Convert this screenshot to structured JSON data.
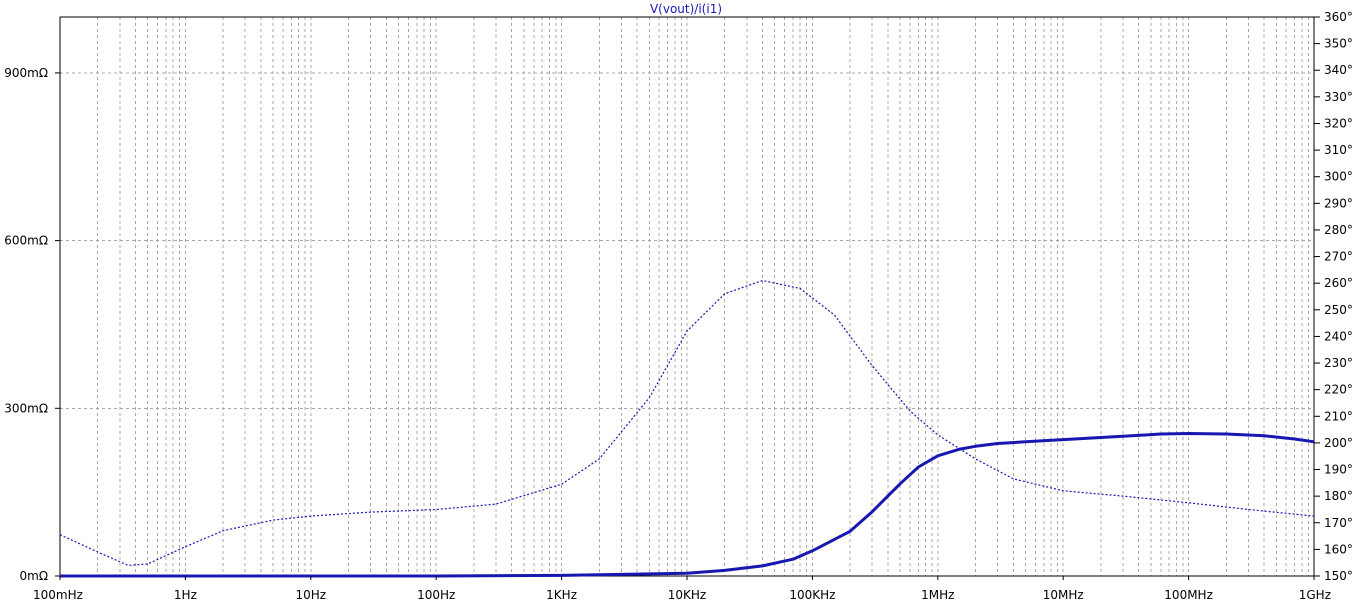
{
  "chart_data": {
    "type": "line",
    "title": "V(vout)/i(i1)",
    "x_scale": "log",
    "xlim_hz": [
      0.1,
      1000000000
    ],
    "x_ticks": [
      {
        "value": 0.1,
        "label": "100mHz"
      },
      {
        "value": 1,
        "label": "1Hz"
      },
      {
        "value": 10,
        "label": "10Hz"
      },
      {
        "value": 100,
        "label": "100Hz"
      },
      {
        "value": 1000,
        "label": "1KHz"
      },
      {
        "value": 10000,
        "label": "10KHz"
      },
      {
        "value": 100000,
        "label": "100KHz"
      },
      {
        "value": 1000000,
        "label": "1MHz"
      },
      {
        "value": 10000000,
        "label": "10MHz"
      },
      {
        "value": 100000000,
        "label": "100MHz"
      },
      {
        "value": 1000000000,
        "label": "1GHz"
      }
    ],
    "y_left": {
      "unit": "mΩ",
      "lim": [
        0,
        1000
      ],
      "ticks": [
        {
          "value": 0,
          "label": "0mΩ"
        },
        {
          "value": 300,
          "label": "300mΩ"
        },
        {
          "value": 600,
          "label": "600mΩ"
        },
        {
          "value": 900,
          "label": "900mΩ"
        }
      ]
    },
    "y_right": {
      "unit": "°",
      "lim": [
        150,
        360
      ],
      "ticks": [
        {
          "value": 150,
          "label": "150°"
        },
        {
          "value": 160,
          "label": "160°"
        },
        {
          "value": 170,
          "label": "170°"
        },
        {
          "value": 180,
          "label": "180°"
        },
        {
          "value": 190,
          "label": "190°"
        },
        {
          "value": 200,
          "label": "200°"
        },
        {
          "value": 210,
          "label": "210°"
        },
        {
          "value": 220,
          "label": "220°"
        },
        {
          "value": 230,
          "label": "230°"
        },
        {
          "value": 240,
          "label": "240°"
        },
        {
          "value": 250,
          "label": "250°"
        },
        {
          "value": 260,
          "label": "260°"
        },
        {
          "value": 270,
          "label": "270°"
        },
        {
          "value": 280,
          "label": "280°"
        },
        {
          "value": 290,
          "label": "290°"
        },
        {
          "value": 300,
          "label": "300°"
        },
        {
          "value": 310,
          "label": "310°"
        },
        {
          "value": 320,
          "label": "320°"
        },
        {
          "value": 330,
          "label": "330°"
        },
        {
          "value": 340,
          "label": "340°"
        },
        {
          "value": 350,
          "label": "350°"
        },
        {
          "value": 360,
          "label": "360°"
        }
      ]
    },
    "grid": true,
    "series": [
      {
        "axis": "left",
        "style": "solid",
        "color": "#1818b0",
        "x": [
          0.1,
          1,
          10,
          100,
          1000,
          10000,
          20000,
          40000,
          70000,
          100000,
          200000,
          300000,
          500000,
          700000,
          1000000,
          1500000,
          2000000,
          3000000,
          5000000,
          10000000,
          30000000,
          60000000,
          100000000,
          200000000,
          400000000,
          700000000,
          1000000000
        ],
        "y": [
          0,
          0,
          0,
          0,
          1,
          5,
          10,
          18,
          30,
          45,
          80,
          115,
          165,
          195,
          215,
          227,
          232,
          237,
          240,
          244,
          250,
          254,
          255,
          254,
          251,
          245,
          240
        ]
      },
      {
        "axis": "right",
        "style": "dotted",
        "color": "#1818b0",
        "x": [
          0.1,
          0.2,
          0.35,
          0.5,
          1,
          2,
          5,
          10,
          30,
          100,
          300,
          1000,
          2000,
          5000,
          10000,
          20000,
          40000,
          80000,
          150000,
          300000,
          600000,
          1000000,
          2000000,
          4000000,
          10000000,
          30000000,
          100000000,
          300000000,
          1000000000
        ],
        "y": [
          165.5,
          159,
          154,
          154.5,
          161,
          167,
          171,
          172.5,
          174,
          175,
          177,
          184.5,
          194,
          217,
          242,
          256,
          261,
          258,
          248,
          229,
          212,
          203,
          194,
          186.5,
          182,
          180,
          177.5,
          175,
          172.5
        ]
      }
    ]
  }
}
